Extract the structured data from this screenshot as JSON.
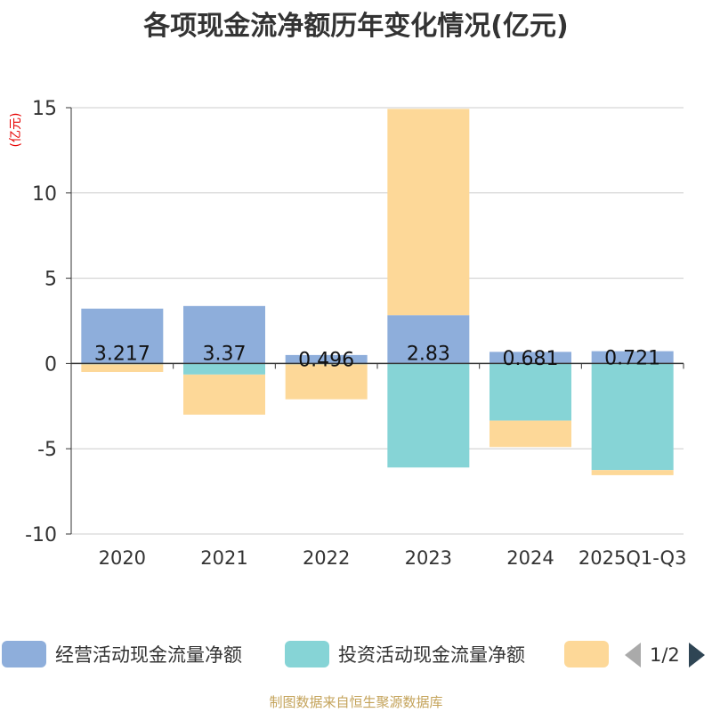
{
  "chart_data": {
    "type": "bar",
    "stacked": true,
    "title": "各项现金流净额历年变化情况(亿元)",
    "ylabel": "(亿元)",
    "xlabel": "",
    "ylim": [
      -10,
      15
    ],
    "yticks": [
      15,
      10,
      5,
      0,
      -5,
      -10
    ],
    "categories": [
      "2020",
      "2021",
      "2022",
      "2023",
      "2024",
      "2025Q1-Q3"
    ],
    "series": [
      {
        "name": "经营活动现金流量净额",
        "color": "#8eaedb",
        "values": [
          3.217,
          3.37,
          0.496,
          2.83,
          0.681,
          0.721
        ],
        "labels": [
          "3.217",
          "3.37",
          "0.496",
          "2.83",
          "0.681",
          "0.721"
        ]
      },
      {
        "name": "投资活动现金流量净额",
        "color": "#86d4d6",
        "values": [
          -0.05,
          -0.65,
          -0.05,
          -6.1,
          -3.35,
          -6.25
        ]
      },
      {
        "name": "",
        "color": "#fdd898",
        "values": [
          -0.45,
          -2.35,
          -2.05,
          12.1,
          -1.55,
          -0.3
        ]
      }
    ],
    "legend_position": "bottom",
    "grid": true
  },
  "legend": {
    "page": "1/2"
  },
  "source": "制图数据来自恒生聚源数据库"
}
